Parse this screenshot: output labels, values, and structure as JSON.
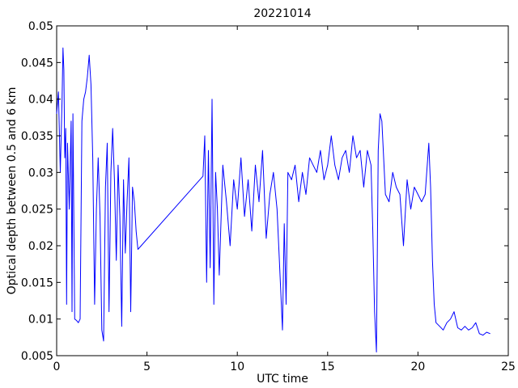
{
  "chart_data": {
    "type": "line",
    "title": "20221014",
    "xlabel": "UTC time",
    "ylabel": "Optical depth between 0.5 and 6 km",
    "xlim": [
      0,
      25
    ],
    "ylim": [
      0.005,
      0.05
    ],
    "xticks": [
      0,
      5,
      10,
      15,
      20,
      25
    ],
    "xtick_labels": [
      "0",
      "5",
      "10",
      "15",
      "20",
      "25"
    ],
    "yticks": [
      0.005,
      0.01,
      0.015,
      0.02,
      0.025,
      0.03,
      0.035,
      0.04,
      0.045,
      0.05
    ],
    "ytick_labels": [
      "0.005",
      "0.01",
      "0.015",
      "0.02",
      "0.025",
      "0.03",
      "0.035",
      "0.04",
      "0.045",
      "0.05"
    ],
    "grid": false,
    "legend": "none",
    "line_color": "#0000ff",
    "series": [
      {
        "x": [
          0.0,
          0.1,
          0.2,
          0.3,
          0.35,
          0.4,
          0.45,
          0.5,
          0.55,
          0.6,
          0.7,
          0.8,
          0.85,
          0.9,
          1.0,
          1.1,
          1.2,
          1.3,
          1.4,
          1.5,
          1.6,
          1.7,
          1.8,
          1.9,
          2.0,
          2.1,
          2.2,
          2.3,
          2.4,
          2.5,
          2.6,
          2.7,
          2.8,
          2.9,
          3.0,
          3.1,
          3.2,
          3.3,
          3.4,
          3.5,
          3.6,
          3.7,
          3.8,
          3.9,
          4.0,
          4.1,
          4.2,
          4.3,
          4.4,
          4.5,
          8.1,
          8.2,
          8.3,
          8.4,
          8.5,
          8.6,
          8.7,
          8.8,
          8.9,
          9.0,
          9.2,
          9.4,
          9.6,
          9.8,
          10.0,
          10.2,
          10.4,
          10.6,
          10.8,
          11.0,
          11.2,
          11.4,
          11.6,
          11.8,
          12.0,
          12.2,
          12.4,
          12.5,
          12.6,
          12.7,
          12.8,
          13.0,
          13.2,
          13.4,
          13.6,
          13.8,
          14.0,
          14.2,
          14.4,
          14.6,
          14.8,
          15.0,
          15.2,
          15.4,
          15.6,
          15.8,
          16.0,
          16.2,
          16.4,
          16.6,
          16.8,
          17.0,
          17.2,
          17.4,
          17.5,
          17.6,
          17.7,
          17.8,
          17.9,
          18.0,
          18.2,
          18.4,
          18.6,
          18.8,
          19.0,
          19.2,
          19.4,
          19.6,
          19.8,
          20.0,
          20.2,
          20.4,
          20.6,
          20.7,
          20.8,
          20.9,
          21.0,
          21.2,
          21.4,
          21.6,
          21.8,
          22.0,
          22.2,
          22.4,
          22.6,
          22.8,
          23.0,
          23.2,
          23.4,
          23.6,
          23.8,
          24.0
        ],
        "y": [
          0.038,
          0.041,
          0.03,
          0.04,
          0.047,
          0.044,
          0.032,
          0.036,
          0.012,
          0.034,
          0.025,
          0.037,
          0.011,
          0.038,
          0.01,
          0.0098,
          0.0095,
          0.01,
          0.037,
          0.04,
          0.041,
          0.043,
          0.046,
          0.042,
          0.032,
          0.012,
          0.025,
          0.032,
          0.024,
          0.0085,
          0.007,
          0.028,
          0.034,
          0.011,
          0.03,
          0.036,
          0.029,
          0.018,
          0.031,
          0.024,
          0.009,
          0.029,
          0.019,
          0.026,
          0.032,
          0.011,
          0.028,
          0.026,
          0.022,
          0.0195,
          0.0295,
          0.035,
          0.015,
          0.033,
          0.017,
          0.04,
          0.012,
          0.03,
          0.025,
          0.016,
          0.031,
          0.026,
          0.02,
          0.029,
          0.025,
          0.032,
          0.024,
          0.029,
          0.022,
          0.031,
          0.026,
          0.033,
          0.021,
          0.027,
          0.03,
          0.025,
          0.014,
          0.0085,
          0.023,
          0.012,
          0.03,
          0.029,
          0.031,
          0.026,
          0.03,
          0.027,
          0.032,
          0.031,
          0.03,
          0.033,
          0.029,
          0.031,
          0.035,
          0.031,
          0.029,
          0.032,
          0.033,
          0.03,
          0.035,
          0.032,
          0.033,
          0.028,
          0.033,
          0.031,
          0.022,
          0.011,
          0.0055,
          0.033,
          0.038,
          0.037,
          0.027,
          0.026,
          0.03,
          0.028,
          0.027,
          0.02,
          0.029,
          0.025,
          0.028,
          0.027,
          0.026,
          0.027,
          0.034,
          0.028,
          0.018,
          0.012,
          0.0095,
          0.009,
          0.0085,
          0.0095,
          0.01,
          0.011,
          0.0088,
          0.0085,
          0.009,
          0.0085,
          0.0088,
          0.0095,
          0.008,
          0.0078,
          0.0082,
          0.008
        ]
      }
    ]
  }
}
